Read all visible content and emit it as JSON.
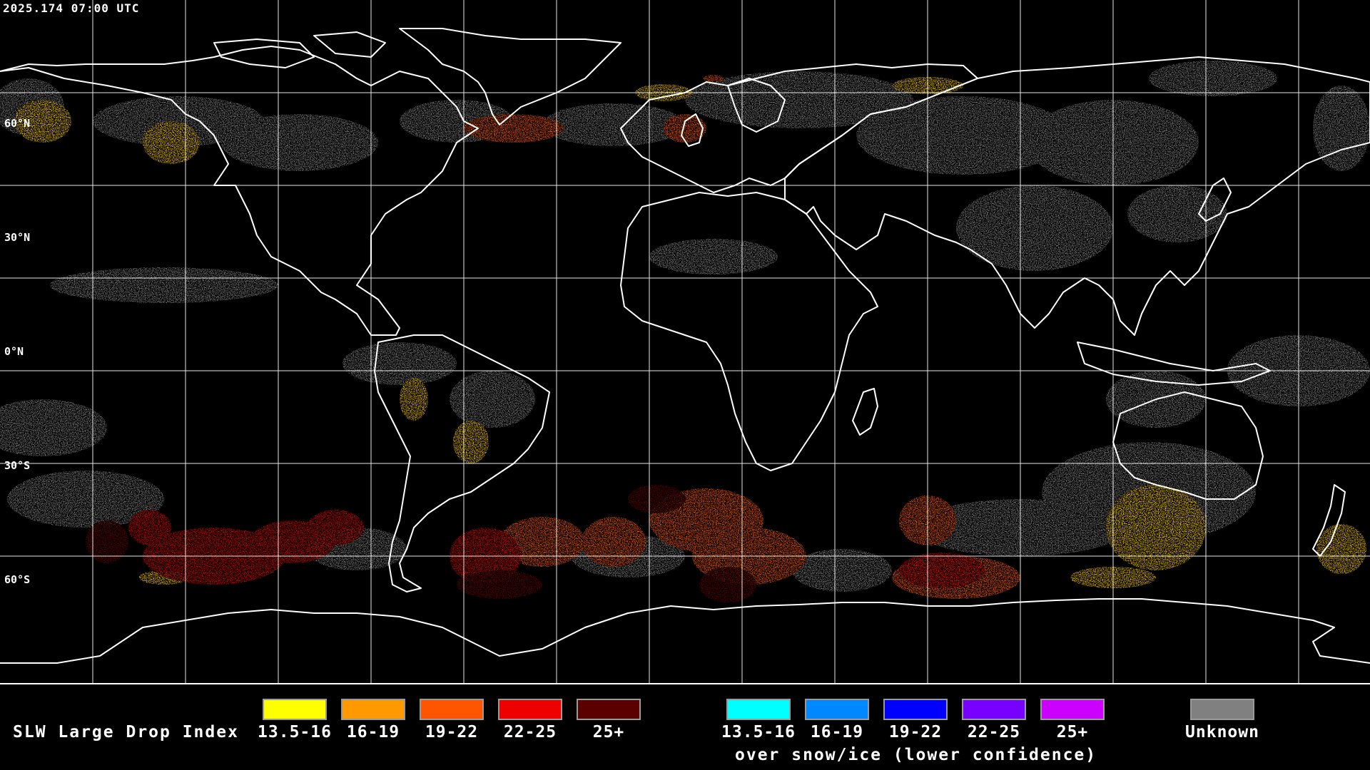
{
  "timestamp": "2025.174 07:00 UTC",
  "latitude_labels": [
    "60°N",
    "30°N",
    "0°N",
    "30°S",
    "60°S"
  ],
  "legend": {
    "title": "SLW Large Drop Index",
    "over_water": [
      {
        "label": "13.5-16",
        "color": "#ffff00"
      },
      {
        "label": "16-19",
        "color": "#ff9900"
      },
      {
        "label": "19-22",
        "color": "#ff5500"
      },
      {
        "label": "22-25",
        "color": "#ee0000"
      },
      {
        "label": "25+",
        "color": "#5a0000"
      }
    ],
    "over_snow_ice": [
      {
        "label": "13.5-16",
        "color": "#00ffff"
      },
      {
        "label": "16-19",
        "color": "#0088ff"
      },
      {
        "label": "19-22",
        "color": "#0000ff"
      },
      {
        "label": "22-25",
        "color": "#7700ff"
      },
      {
        "label": "25+",
        "color": "#cc00ff"
      }
    ],
    "over_snow_ice_note": "over snow/ice (lower confidence)",
    "unknown": {
      "label": "Unknown",
      "color": "#808080"
    }
  }
}
